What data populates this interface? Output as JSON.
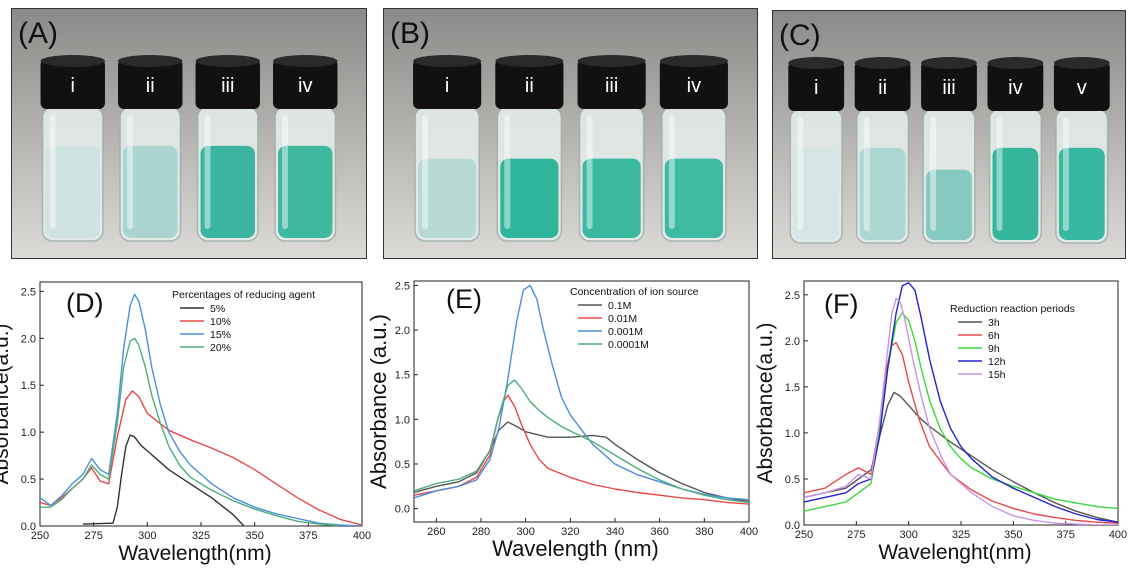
{
  "photos": [
    {
      "letter": "(A)",
      "vials": [
        {
          "label": "i",
          "tint": "#cfe3e0",
          "level": 0.72
        },
        {
          "label": "ii",
          "tint": "#a9d4cf",
          "level": 0.72
        },
        {
          "label": "iii",
          "tint": "#3bb59f",
          "level": 0.72
        },
        {
          "label": "iv",
          "tint": "#3fb8a0",
          "level": 0.72
        }
      ]
    },
    {
      "letter": "(B)",
      "vials": [
        {
          "label": "i",
          "tint": "#b7d9d4",
          "level": 0.62
        },
        {
          "label": "ii",
          "tint": "#2eb59b",
          "level": 0.62
        },
        {
          "label": "iii",
          "tint": "#3ab8a0",
          "level": 0.62
        },
        {
          "label": "iv",
          "tint": "#3dbba2",
          "level": 0.62
        }
      ]
    },
    {
      "letter": "(C)",
      "vials": [
        {
          "label": "i",
          "tint": "#d3e6e3",
          "level": 0.72
        },
        {
          "label": "ii",
          "tint": "#acd6d0",
          "level": 0.72
        },
        {
          "label": "iii",
          "tint": "#86c9c0",
          "level": 0.55
        },
        {
          "label": "iv",
          "tint": "#34b59c",
          "level": 0.72
        },
        {
          "label": "v",
          "tint": "#38b8a0",
          "level": 0.72
        }
      ]
    }
  ],
  "chart_data": [
    {
      "type": "line",
      "panel": "(D)",
      "xlabel": "Wavelength(nm)",
      "ylabel": "Absorbance(a.u.)",
      "xlim": [
        250,
        400
      ],
      "ylim": [
        0,
        2.6
      ],
      "xticks": [
        250,
        275,
        300,
        325,
        350,
        375,
        400
      ],
      "yticks": [
        0.0,
        0.5,
        1.0,
        1.5,
        2.0,
        2.5
      ],
      "xtick_labels": [
        "250",
        "275",
        "300",
        "325",
        "350",
        "375",
        "400"
      ],
      "ytick_labels": [
        "0.0",
        "0.5",
        "1.0",
        "1.5",
        "2.0",
        "2.5"
      ],
      "legend_title": "Percentages of reducing agent",
      "legend_position": "top-right",
      "series": [
        {
          "name": "5%",
          "color": "#333333",
          "x": [
            270,
            284,
            286,
            288,
            290,
            292,
            294,
            297,
            300,
            305,
            310,
            320,
            330,
            340,
            345
          ],
          "y": [
            0.02,
            0.03,
            0.2,
            0.55,
            0.85,
            0.97,
            0.95,
            0.86,
            0.8,
            0.7,
            0.6,
            0.45,
            0.3,
            0.12,
            0.0
          ]
        },
        {
          "name": "10%",
          "color": "#e8484a",
          "x": [
            250,
            255,
            260,
            265,
            270,
            274,
            278,
            282,
            286,
            290,
            293,
            296,
            300,
            310,
            320,
            330,
            340,
            350,
            360,
            370,
            380,
            390,
            400
          ],
          "y": [
            0.25,
            0.22,
            0.3,
            0.4,
            0.5,
            0.62,
            0.48,
            0.45,
            0.95,
            1.35,
            1.44,
            1.38,
            1.2,
            1.02,
            0.92,
            0.83,
            0.73,
            0.6,
            0.45,
            0.3,
            0.17,
            0.07,
            0.01
          ]
        },
        {
          "name": "15%",
          "color": "#4a8fe0",
          "x": [
            250,
            255,
            260,
            265,
            270,
            274,
            278,
            282,
            286,
            289,
            292,
            294,
            296,
            299,
            302,
            306,
            310,
            315,
            320,
            325,
            330,
            340,
            350,
            360,
            370,
            380,
            390,
            400
          ],
          "y": [
            0.3,
            0.22,
            0.32,
            0.45,
            0.55,
            0.72,
            0.6,
            0.55,
            1.2,
            1.9,
            2.35,
            2.47,
            2.4,
            2.1,
            1.7,
            1.3,
            1.0,
            0.8,
            0.65,
            0.55,
            0.45,
            0.3,
            0.2,
            0.13,
            0.08,
            0.03,
            0.01,
            0.0
          ]
        },
        {
          "name": "20%",
          "color": "#4fae78",
          "x": [
            250,
            255,
            260,
            265,
            270,
            274,
            278,
            282,
            286,
            289,
            292,
            294,
            296,
            299,
            302,
            306,
            310,
            315,
            320,
            330,
            340,
            350,
            360,
            370,
            380,
            390
          ],
          "y": [
            0.2,
            0.2,
            0.28,
            0.4,
            0.5,
            0.65,
            0.55,
            0.5,
            1.1,
            1.7,
            1.97,
            2.0,
            1.93,
            1.7,
            1.4,
            1.1,
            0.85,
            0.65,
            0.52,
            0.38,
            0.27,
            0.18,
            0.11,
            0.05,
            0.02,
            0.0
          ]
        }
      ]
    },
    {
      "type": "line",
      "panel": "(E)",
      "xlabel": "Wavelength (nm)",
      "ylabel": "Absorbance (a.u.)",
      "xlim": [
        250,
        400
      ],
      "ylim": [
        -0.15,
        2.55
      ],
      "xticks": [
        260,
        280,
        300,
        320,
        340,
        360,
        380,
        400
      ],
      "yticks": [
        0.0,
        0.5,
        1.0,
        1.5,
        2.0,
        2.5
      ],
      "xtick_labels": [
        "260",
        "280",
        "300",
        "320",
        "340",
        "360",
        "380",
        "400"
      ],
      "ytick_labels": [
        "0.0",
        "0.5",
        "1.0",
        "1.5",
        "2.0",
        "2.5"
      ],
      "legend_title": "Concentration of ion source",
      "legend_position": "top-right",
      "series": [
        {
          "name": "0.1M",
          "color": "#555555",
          "x": [
            250,
            260,
            270,
            278,
            284,
            288,
            292,
            296,
            300,
            310,
            320,
            330,
            336,
            340,
            350,
            360,
            370,
            380,
            390,
            400
          ],
          "y": [
            0.18,
            0.25,
            0.3,
            0.4,
            0.65,
            0.88,
            0.97,
            0.92,
            0.86,
            0.8,
            0.8,
            0.82,
            0.8,
            0.72,
            0.55,
            0.4,
            0.28,
            0.18,
            0.12,
            0.08
          ]
        },
        {
          "name": "0.01M",
          "color": "#e8484a",
          "x": [
            250,
            260,
            270,
            278,
            284,
            287,
            290,
            292,
            295,
            298,
            302,
            306,
            310,
            320,
            330,
            340,
            350,
            360,
            370,
            380,
            390,
            400
          ],
          "y": [
            0.15,
            0.2,
            0.25,
            0.35,
            0.6,
            0.95,
            1.2,
            1.27,
            1.15,
            0.95,
            0.72,
            0.55,
            0.45,
            0.35,
            0.27,
            0.22,
            0.18,
            0.15,
            0.12,
            0.1,
            0.07,
            0.05
          ]
        },
        {
          "name": "0.001M",
          "color": "#4a8fe0",
          "x": [
            250,
            260,
            270,
            278,
            284,
            288,
            292,
            296,
            299,
            302,
            305,
            308,
            312,
            316,
            320,
            326,
            330,
            340,
            350,
            360,
            370,
            380,
            390,
            400
          ],
          "y": [
            0.12,
            0.2,
            0.25,
            0.32,
            0.55,
            0.9,
            1.45,
            2.1,
            2.45,
            2.5,
            2.35,
            2.0,
            1.6,
            1.25,
            1.05,
            0.85,
            0.72,
            0.5,
            0.38,
            0.3,
            0.22,
            0.16,
            0.12,
            0.1
          ]
        },
        {
          "name": "0.0001M",
          "color": "#4fae78",
          "x": [
            250,
            260,
            270,
            278,
            284,
            288,
            292,
            295,
            298,
            302,
            306,
            310,
            316,
            320,
            330,
            340,
            350,
            360,
            370,
            380,
            390,
            400
          ],
          "y": [
            0.2,
            0.28,
            0.33,
            0.42,
            0.65,
            1.05,
            1.38,
            1.44,
            1.35,
            1.2,
            1.1,
            1.02,
            0.92,
            0.87,
            0.75,
            0.6,
            0.45,
            0.32,
            0.22,
            0.15,
            0.1,
            0.07
          ]
        }
      ]
    },
    {
      "type": "line",
      "panel": "(F)",
      "xlabel": "Wavelenght(nm)",
      "ylabel": "Absorbance(a.u.)",
      "xlim": [
        250,
        400
      ],
      "ylim": [
        0,
        2.65
      ],
      "xticks": [
        250,
        275,
        300,
        325,
        350,
        375,
        400
      ],
      "yticks": [
        0.0,
        0.5,
        1.0,
        1.5,
        2.0,
        2.5
      ],
      "xtick_labels": [
        "250",
        "275",
        "300",
        "325",
        "350",
        "375",
        "400"
      ],
      "ytick_labels": [
        "0.0",
        "0.5",
        "1.0",
        "1.5",
        "2.0",
        "2.5"
      ],
      "legend_title": "Reduction reaction periods",
      "legend_position": "top-right",
      "series": [
        {
          "name": "3h",
          "color": "#555555",
          "x": [
            250,
            260,
            270,
            276,
            282,
            286,
            290,
            293,
            296,
            300,
            305,
            310,
            320,
            330,
            340,
            350,
            360,
            370,
            380,
            390,
            400
          ],
          "y": [
            0.3,
            0.35,
            0.4,
            0.5,
            0.6,
            0.95,
            1.3,
            1.44,
            1.4,
            1.3,
            1.17,
            1.07,
            0.9,
            0.75,
            0.6,
            0.47,
            0.35,
            0.24,
            0.15,
            0.08,
            0.03
          ]
        },
        {
          "name": "6h",
          "color": "#e8484a",
          "x": [
            250,
            260,
            270,
            276,
            282,
            286,
            289,
            292,
            294,
            297,
            300,
            305,
            310,
            320,
            330,
            340,
            350,
            360,
            370,
            380,
            390,
            400
          ],
          "y": [
            0.35,
            0.4,
            0.55,
            0.62,
            0.55,
            1.1,
            1.65,
            1.95,
            1.98,
            1.85,
            1.55,
            1.15,
            0.85,
            0.55,
            0.38,
            0.26,
            0.18,
            0.12,
            0.08,
            0.05,
            0.03,
            0.02
          ]
        },
        {
          "name": "9h",
          "color": "#3cd83c",
          "x": [
            250,
            260,
            270,
            276,
            282,
            286,
            290,
            294,
            297,
            300,
            303,
            306,
            310,
            315,
            320,
            325,
            330,
            340,
            350,
            360,
            370,
            380,
            390,
            400
          ],
          "y": [
            0.15,
            0.2,
            0.25,
            0.35,
            0.45,
            1.0,
            1.7,
            2.2,
            2.3,
            2.22,
            2.0,
            1.7,
            1.35,
            1.05,
            0.85,
            0.72,
            0.62,
            0.5,
            0.42,
            0.35,
            0.28,
            0.24,
            0.2,
            0.18
          ]
        },
        {
          "name": "12h",
          "color": "#2323d0",
          "x": [
            250,
            260,
            270,
            276,
            282,
            286,
            290,
            294,
            297,
            300,
            303,
            306,
            310,
            315,
            320,
            325,
            330,
            340,
            350,
            360,
            370,
            380,
            390,
            400
          ],
          "y": [
            0.25,
            0.3,
            0.35,
            0.45,
            0.5,
            0.95,
            1.7,
            2.3,
            2.6,
            2.63,
            2.55,
            2.25,
            1.8,
            1.35,
            1.05,
            0.85,
            0.72,
            0.52,
            0.4,
            0.3,
            0.2,
            0.12,
            0.06,
            0.03
          ]
        },
        {
          "name": "15h",
          "color": "#c993e6",
          "x": [
            250,
            260,
            270,
            276,
            282,
            286,
            290,
            292,
            294,
            296,
            298,
            302,
            306,
            310,
            316,
            320,
            330,
            340,
            350,
            360,
            370,
            380,
            390,
            400
          ],
          "y": [
            0.3,
            0.35,
            0.42,
            0.55,
            0.5,
            1.1,
            1.9,
            2.3,
            2.46,
            2.42,
            2.25,
            1.8,
            1.4,
            1.05,
            0.72,
            0.55,
            0.35,
            0.2,
            0.1,
            0.05,
            0.02,
            0.01,
            0.0,
            0.0
          ]
        }
      ]
    }
  ]
}
